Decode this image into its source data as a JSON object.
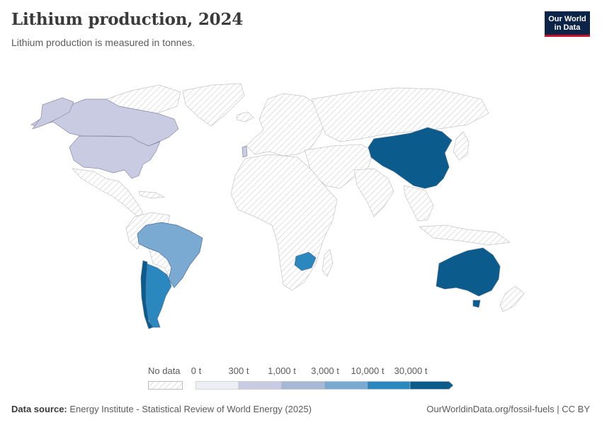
{
  "header": {
    "title": "Lithium production, 2024",
    "subtitle": "Lithium production is measured in tonnes."
  },
  "logo": {
    "line1": "Our World",
    "line2": "in Data"
  },
  "legend": {
    "no_data_label": "No data",
    "bins": [
      "0 t",
      "300 t",
      "1,000 t",
      "3,000 t",
      "10,000 t",
      "30,000 t"
    ],
    "colors": [
      "#eeeef5",
      "#c9cbe3",
      "#a6b8d6",
      "#7aa9d1",
      "#2b88bf",
      "#0b5b8c"
    ]
  },
  "map_data": {
    "unit": "t",
    "countries": [
      {
        "name": "Canada",
        "bin": "0–300 t"
      },
      {
        "name": "United States",
        "bin": "0–300 t"
      },
      {
        "name": "Brazil",
        "bin": "3,000–10,000 t"
      },
      {
        "name": "Argentina",
        "bin": "10,000–30,000 t"
      },
      {
        "name": "Chile",
        "bin": ">30,000 t"
      },
      {
        "name": "Zimbabwe",
        "bin": "10,000–30,000 t"
      },
      {
        "name": "China",
        "bin": ">30,000 t"
      },
      {
        "name": "Australia",
        "bin": ">30,000 t"
      },
      {
        "name": "Portugal",
        "bin": "0–300 t"
      }
    ]
  },
  "footer": {
    "source_label": "Data source:",
    "source_text": "Energy Institute - Statistical Review of World Energy (2025)",
    "url": "OurWorldinData.org/fossil-fuels | CC BY"
  }
}
